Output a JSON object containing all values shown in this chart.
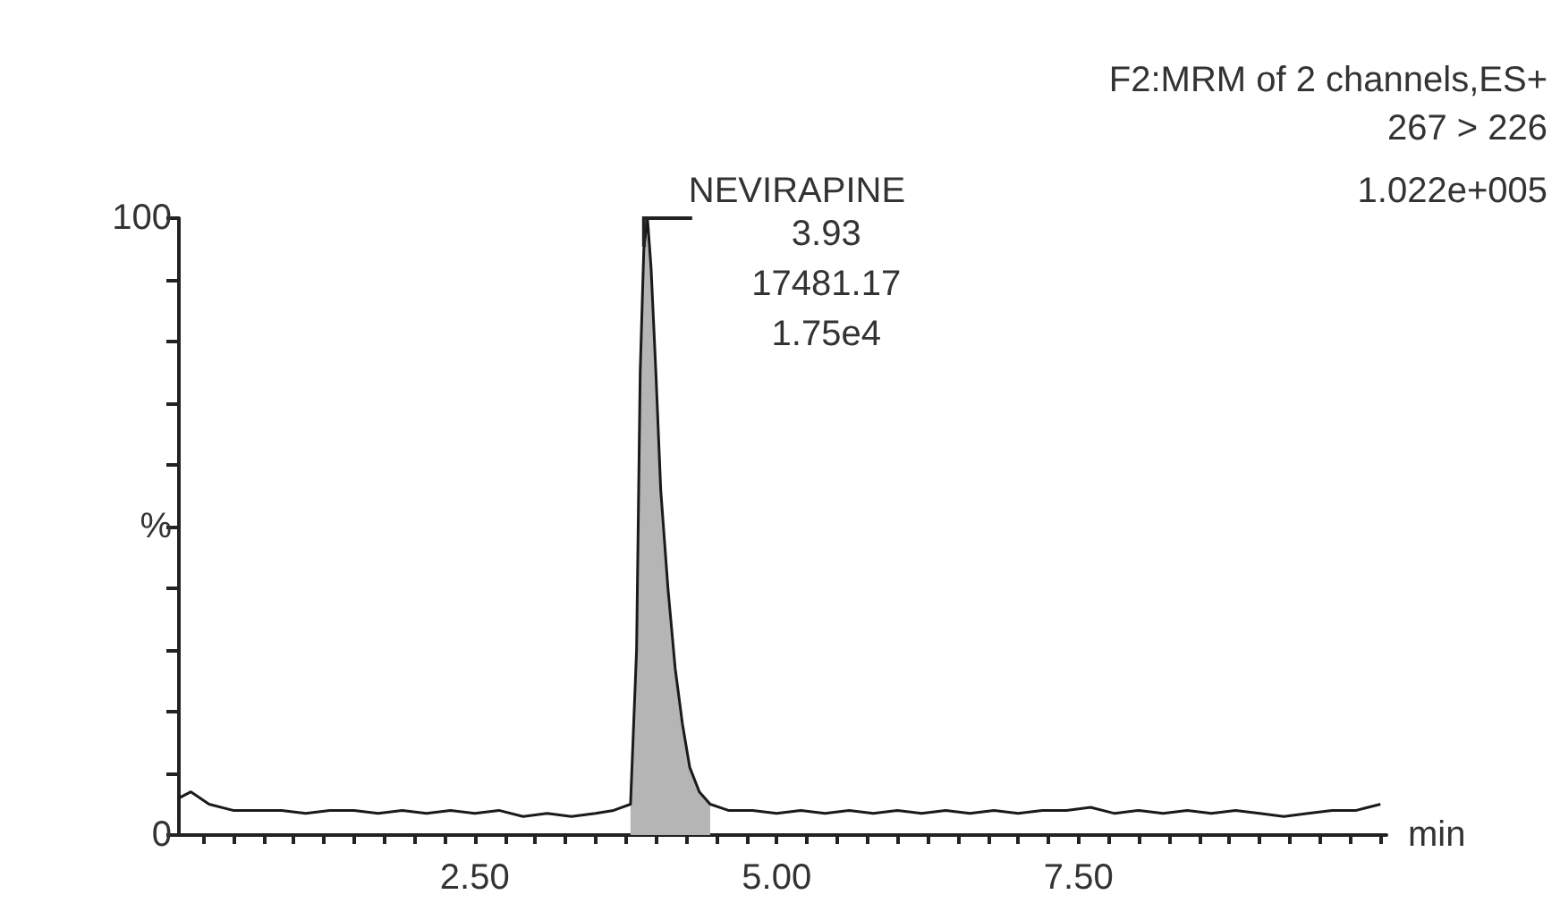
{
  "chart_data": {
    "type": "line",
    "title": "F2:MRM of 2 channels,ES+",
    "subtitle": "267 > 226",
    "xlabel": "min",
    "annotations": [
      {
        "text": "NEVIRAPINE",
        "x": 3.93,
        "y": 100
      },
      "3.93",
      "17481.17",
      "1.75e4",
      "1.022e+005"
    ],
    "series": [
      {
        "color": "#1a1a1a",
        "x": [
          0.05,
          0.15,
          0.3,
          0.5,
          0.7,
          0.9,
          1.1,
          1.3,
          1.5,
          1.7,
          1.9,
          2.1,
          2.3,
          2.5,
          2.7,
          2.9,
          3.1,
          3.3,
          3.5,
          3.65,
          3.79,
          3.84,
          3.87,
          3.9,
          3.93,
          3.96,
          4.0,
          4.04,
          4.1,
          4.16,
          4.22,
          4.28,
          4.36,
          4.45,
          4.6,
          4.8,
          5.0,
          5.2,
          5.4,
          5.6,
          5.8,
          6.0,
          6.2,
          6.4,
          6.6,
          6.8,
          7.0,
          7.2,
          7.4,
          7.6,
          7.8,
          8.0,
          8.2,
          8.4,
          8.6,
          8.8,
          9.0,
          9.2,
          9.4,
          9.6,
          9.8,
          10.0
        ],
        "values": [
          6,
          7,
          5,
          4,
          4,
          4,
          3.5,
          4,
          4,
          3.5,
          4,
          3.5,
          4,
          3.5,
          4,
          3,
          3.5,
          3,
          3.5,
          4,
          5,
          30,
          75,
          95,
          100,
          92,
          75,
          56,
          40,
          27,
          18,
          11,
          7,
          5,
          4,
          4,
          3.5,
          4,
          3.5,
          4,
          3.5,
          4,
          3.5,
          4,
          3.5,
          4,
          3.5,
          4,
          4,
          4.5,
          3.5,
          4,
          3.5,
          4,
          3.5,
          4,
          3.5,
          3,
          3.5,
          4,
          4,
          5
        ]
      },
      {
        "type": "area",
        "color": "#b5b5b5",
        "x": [
          3.79,
          3.84,
          3.87,
          3.9,
          3.93,
          3.96,
          4.0,
          4.04,
          4.1,
          4.16,
          4.22,
          4.28,
          4.36,
          4.45
        ],
        "values": [
          5,
          30,
          75,
          95,
          100,
          92,
          75,
          56,
          40,
          27,
          18,
          11,
          7,
          5
        ]
      }
    ],
    "xlim": [
      0.05,
      10.05
    ],
    "xticks": [
      {
        "value": 0.25,
        "label": null
      },
      {
        "value": 0.5,
        "label": null
      },
      {
        "value": 0.75,
        "label": null
      },
      {
        "value": 1,
        "label": null
      },
      {
        "value": 1.25,
        "label": null
      },
      {
        "value": 1.5,
        "label": null
      },
      {
        "value": 1.75,
        "label": null
      },
      {
        "value": 2,
        "label": null
      },
      {
        "value": 2.25,
        "label": null
      },
      {
        "value": 2.5,
        "label": "2.50"
      },
      {
        "value": 2.75,
        "label": null
      },
      {
        "value": 3,
        "label": null
      },
      {
        "value": 3.25,
        "label": null
      },
      {
        "value": 3.5,
        "label": null
      },
      {
        "value": 3.75,
        "label": null
      },
      {
        "value": 4,
        "label": null
      },
      {
        "value": 4.25,
        "label": null
      },
      {
        "value": 4.5,
        "label": null
      },
      {
        "value": 4.75,
        "label": null
      },
      {
        "value": 5,
        "label": "5.00"
      },
      {
        "value": 5.25,
        "label": null
      },
      {
        "value": 5.5,
        "label": null
      },
      {
        "value": 5.75,
        "label": null
      },
      {
        "value": 6,
        "label": null
      },
      {
        "value": 6.25,
        "label": null
      },
      {
        "value": 6.5,
        "label": null
      },
      {
        "value": 6.75,
        "label": null
      },
      {
        "value": 7,
        "label": null
      },
      {
        "value": 7.25,
        "label": null
      },
      {
        "value": 7.5,
        "label": "7.50"
      },
      {
        "value": 7.75,
        "label": null
      },
      {
        "value": 8,
        "label": null
      },
      {
        "value": 8.25,
        "label": null
      },
      {
        "value": 8.5,
        "label": null
      },
      {
        "value": 8.75,
        "label": null
      },
      {
        "value": 9,
        "label": null
      },
      {
        "value": 9.25,
        "label": null
      },
      {
        "value": 9.5,
        "label": null
      },
      {
        "value": 9.75,
        "label": null
      },
      {
        "value": 10,
        "label": null
      }
    ],
    "ylim": [
      0,
      100
    ],
    "yticks": [
      0,
      {
        "value": 10,
        "label": null
      },
      {
        "value": 20,
        "label": null
      },
      {
        "value": 30,
        "label": null
      },
      {
        "value": 40,
        "label": null
      },
      {
        "value": 50,
        "label": "%"
      },
      {
        "value": 60,
        "label": null
      },
      {
        "value": 70,
        "label": null
      },
      {
        "value": 80,
        "label": null
      },
      {
        "value": 90,
        "label": null
      },
      100
    ],
    "grid": false,
    "marker": "none",
    "line_style": "solid"
  }
}
